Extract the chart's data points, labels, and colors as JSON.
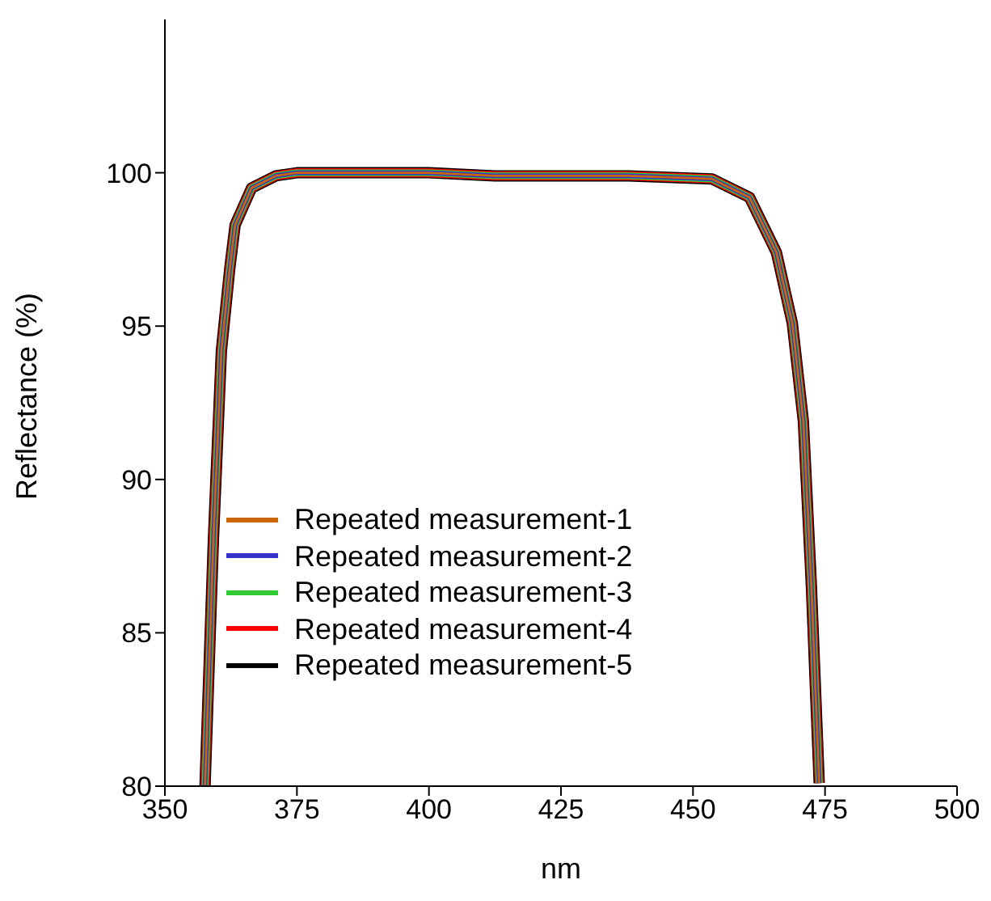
{
  "chart_data": {
    "type": "line",
    "xlabel": "nm",
    "ylabel": "Reflectance (%)",
    "x": [
      357.6,
      359.2,
      360.7,
      362.3,
      363.3,
      366.4,
      371,
      375,
      387.5,
      400,
      412.5,
      425,
      437.8,
      453.6,
      460.7,
      465.8,
      468.8,
      470.9,
      472.4,
      473.9
    ],
    "series": [
      {
        "name": "Repeated measurement-1",
        "color": "#cc6600",
        "values": [
          80,
          88.1,
          94.2,
          96.9,
          98.3,
          99.5,
          99.9,
          100,
          100,
          100,
          99.9,
          99.9,
          99.9,
          99.8,
          99.2,
          97.4,
          95.1,
          91.9,
          86.6,
          80.1
        ]
      },
      {
        "name": "Repeated measurement-2",
        "color": "#3333cc",
        "values": [
          80,
          88.1,
          94.2,
          96.9,
          98.3,
          99.5,
          99.9,
          100,
          100,
          100,
          99.9,
          99.9,
          99.9,
          99.8,
          99.2,
          97.4,
          95.1,
          91.9,
          86.6,
          80.1
        ]
      },
      {
        "name": "Repeated measurement-3",
        "color": "#33cc33",
        "values": [
          80,
          88.1,
          94.2,
          96.9,
          98.3,
          99.5,
          99.9,
          100,
          100,
          100,
          99.9,
          99.9,
          99.9,
          99.8,
          99.2,
          97.4,
          95.1,
          91.9,
          86.6,
          80.1
        ]
      },
      {
        "name": "Repeated measurement-4",
        "color": "#ff0000",
        "values": [
          80,
          88.1,
          94.2,
          96.9,
          98.3,
          99.5,
          99.9,
          100,
          100,
          100,
          99.9,
          99.9,
          99.9,
          99.8,
          99.2,
          97.4,
          95.1,
          91.9,
          86.6,
          80.1
        ]
      },
      {
        "name": "Repeated measurement-5",
        "color": "#000000",
        "values": [
          80,
          88.1,
          94.2,
          96.9,
          98.3,
          99.5,
          99.9,
          100,
          100,
          100,
          99.9,
          99.9,
          99.9,
          99.8,
          99.2,
          97.4,
          95.1,
          91.9,
          86.6,
          80.1
        ]
      }
    ],
    "xlim": [
      350,
      500
    ],
    "xticks": [
      350,
      375,
      400,
      425,
      450,
      475,
      500
    ],
    "ylim": [
      80,
      105
    ],
    "yticks": [
      80,
      85,
      90,
      95,
      100
    ],
    "grid": false,
    "legend": "bottom left",
    "marker": "none",
    "line_style": "solid"
  }
}
